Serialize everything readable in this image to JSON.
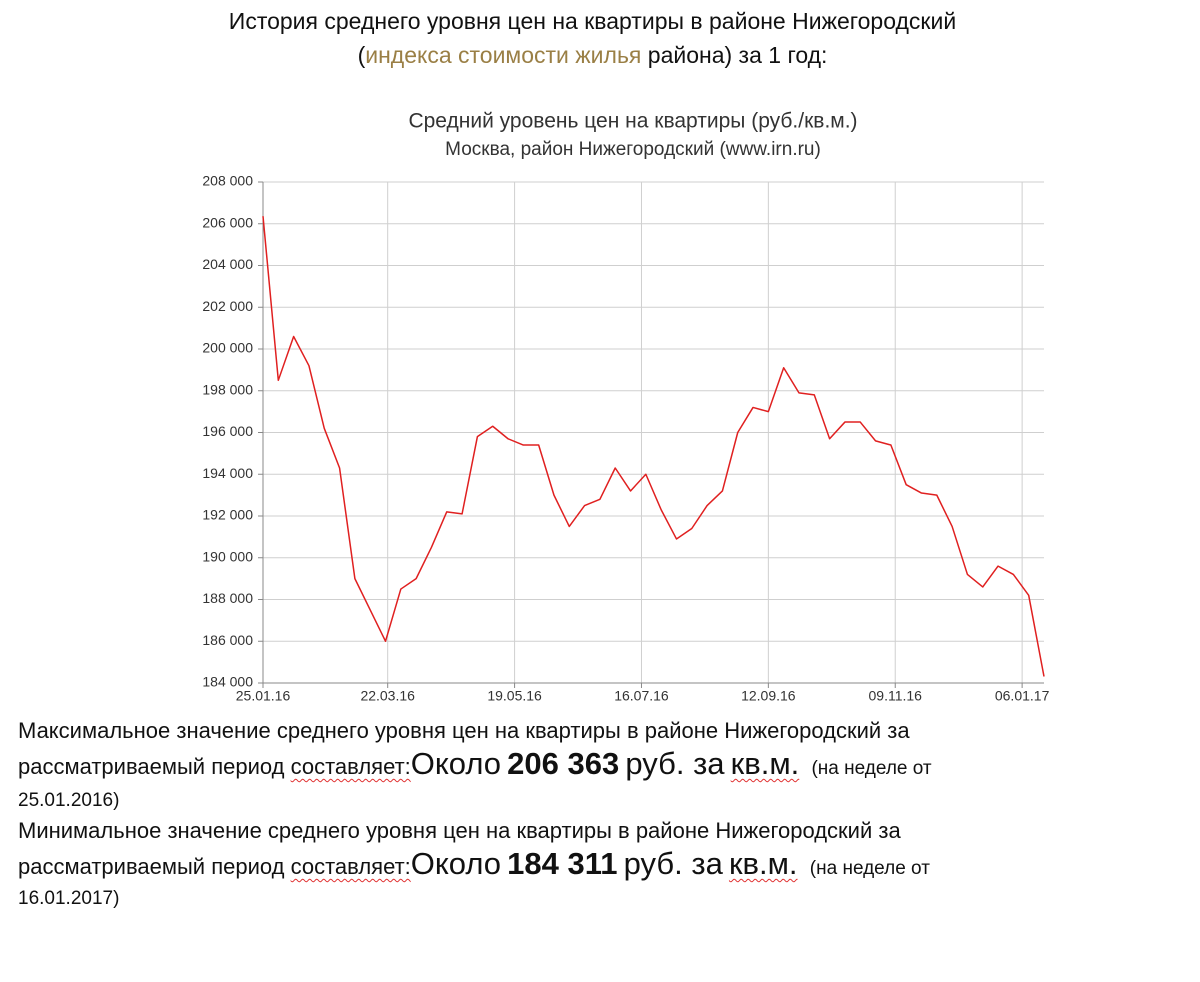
{
  "header": {
    "line1": "История среднего уровня цен на квартиры в районе Нижегородский",
    "open": "(",
    "link": "индекса стоимости жилья",
    "rest": "района) за 1 год:"
  },
  "chart_data": {
    "type": "line",
    "title": "Средний уровень цен на квартиры (руб./кв.м.)",
    "subtitle": "Москва, район Нижегородский (www.irn.ru)",
    "x": [
      "25.01.16",
      "01.02.16",
      "08.02.16",
      "15.02.16",
      "22.02.16",
      "29.02.16",
      "07.03.16",
      "14.03.16",
      "21.03.16",
      "28.03.16",
      "04.04.16",
      "11.04.16",
      "18.04.16",
      "25.04.16",
      "02.05.16",
      "09.05.16",
      "16.05.16",
      "23.05.16",
      "30.05.16",
      "06.06.16",
      "13.06.16",
      "20.06.16",
      "27.06.16",
      "04.07.16",
      "11.07.16",
      "18.07.16",
      "25.07.16",
      "01.08.16",
      "08.08.16",
      "15.08.16",
      "22.08.16",
      "29.08.16",
      "05.09.16",
      "12.09.16",
      "19.09.16",
      "26.09.16",
      "03.10.16",
      "10.10.16",
      "17.10.16",
      "24.10.16",
      "31.10.16",
      "07.11.16",
      "14.11.16",
      "21.11.16",
      "28.11.16",
      "05.12.16",
      "12.12.16",
      "19.12.16",
      "26.12.16",
      "02.01.17",
      "09.01.17",
      "16.01.17"
    ],
    "values": [
      206363,
      198500,
      200600,
      199200,
      196200,
      194300,
      189000,
      187500,
      186000,
      188500,
      189000,
      190500,
      192200,
      192100,
      195800,
      196300,
      195700,
      195400,
      195400,
      193000,
      191500,
      192500,
      192800,
      194300,
      193200,
      194000,
      192300,
      190900,
      191400,
      192500,
      193200,
      196000,
      197200,
      197000,
      199100,
      197900,
      197800,
      195700,
      196500,
      196500,
      195600,
      195400,
      193500,
      193100,
      193000,
      191500,
      189200,
      188600,
      189600,
      189200,
      188200,
      184311
    ],
    "color": "#e02020",
    "xlim": [
      "25.01.16",
      "16.01.17"
    ],
    "xticks": [
      "25.01.16",
      "22.03.16",
      "19.05.16",
      "16.07.16",
      "12.09.16",
      "09.11.16",
      "06.01.17"
    ],
    "ylim": [
      184000,
      208000
    ],
    "yticks": [
      {
        "value": 184000,
        "label": "184 000"
      },
      {
        "value": 186000,
        "label": "186 000"
      },
      {
        "value": 188000,
        "label": "188 000"
      },
      {
        "value": 190000,
        "label": "190 000"
      },
      {
        "value": 192000,
        "label": "192 000"
      },
      {
        "value": 194000,
        "label": "194 000"
      },
      {
        "value": 196000,
        "label": "196 000"
      },
      {
        "value": 198000,
        "label": "198 000"
      },
      {
        "value": 200000,
        "label": "200 000"
      },
      {
        "value": 202000,
        "label": "202 000"
      },
      {
        "value": 204000,
        "label": "204 000"
      },
      {
        "value": 206000,
        "label": "206 000"
      },
      {
        "value": 208000,
        "label": "208 000"
      }
    ],
    "grid": true
  },
  "footer": {
    "max": {
      "line1": "Максимальное значение среднего уровня цен на квартиры в районе Нижегородский за",
      "pre": "рассматриваемый период",
      "word": "составляет:",
      "about": "Около",
      "value": "206 363",
      "unit": "руб. за",
      "unit2": "кв.м.",
      "note": "(на неделе от",
      "date": "25.01.2016)"
    },
    "min": {
      "line1": "Минимальное значение среднего уровня цен на квартиры в районе Нижегородский за",
      "pre": "рассматриваемый период",
      "word": "составляет:",
      "about": "Около",
      "value": "184 311",
      "unit": "руб. за",
      "unit2": "кв.м.",
      "note": "(на неделе от",
      "date": "16.01.2017)"
    }
  }
}
